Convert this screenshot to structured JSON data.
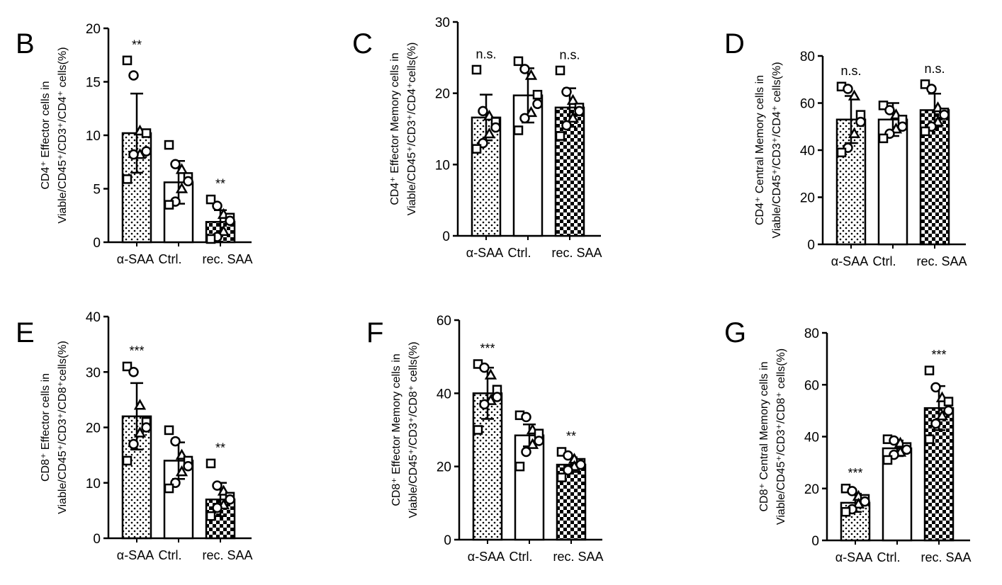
{
  "chart_data": [
    {
      "panel": "B",
      "type": "bar",
      "ylabel": [
        "CD4⁺ Effector cells in",
        "Viable/CD45⁺/CD3⁺/CD4⁺ cells(%)"
      ],
      "categories": [
        "α-SAA",
        "Ctrl.",
        "rec. SAA"
      ],
      "ylim": [
        0,
        20
      ],
      "yticks": [
        0,
        5,
        10,
        15,
        20
      ],
      "means": [
        10.2,
        5.6,
        1.9
      ],
      "sd": [
        3.7,
        2.0,
        1.1
      ],
      "significance": [
        "**",
        "",
        "**"
      ],
      "points": [
        [
          17,
          15.6,
          10.4,
          10.2,
          8.5,
          8.2,
          8.2,
          5.9
        ],
        [
          9.1,
          7.3,
          6.8,
          6.1,
          5.7,
          5.0,
          3.8,
          3.5
        ],
        [
          4.0,
          3.4,
          2.6,
          2.3,
          2.0,
          1.0,
          0.5,
          0.3
        ]
      ]
    },
    {
      "panel": "C",
      "type": "bar",
      "ylabel": [
        "CD4⁺ Effector Memory cells in",
        "Viable/CD45⁺/CD3⁺/CD4⁺cells(%)"
      ],
      "categories": [
        "α-SAA",
        "Ctrl.",
        "rec. SAA"
      ],
      "ylim": [
        0,
        30
      ],
      "yticks": [
        0,
        10,
        20,
        30
      ],
      "means": [
        16.6,
        19.7,
        18.0
      ],
      "sd": [
        3.2,
        3.8,
        2.7
      ],
      "significance": [
        "n.s.",
        "",
        "n.s."
      ],
      "points": [
        [
          23.3,
          17.5,
          16.8,
          16.0,
          15.2,
          14.3,
          13.0,
          12.2
        ],
        [
          24.5,
          23.4,
          22.5,
          19.8,
          18.5,
          17.3,
          16.5,
          14.8
        ],
        [
          23.2,
          20.2,
          19.0,
          18.0,
          17.5,
          16.5,
          15.5,
          14.0
        ]
      ]
    },
    {
      "panel": "D",
      "type": "bar",
      "ylabel": [
        "CD4⁺ Central Memory cells in",
        "Viable/CD45⁺/CD3⁺/CD4⁺ cells(%)"
      ],
      "categories": [
        "α-SAA",
        "Ctrl.",
        "rec. SAA"
      ],
      "ylim": [
        0,
        80
      ],
      "yticks": [
        0,
        20,
        40,
        60,
        80
      ],
      "means": [
        53,
        53,
        57
      ],
      "sd": [
        10,
        7,
        7
      ],
      "significance": [
        "n.s.",
        "",
        "n.s."
      ],
      "points": [
        [
          67,
          66,
          63,
          55,
          52,
          47,
          41,
          39
        ],
        [
          59,
          57,
          55,
          53,
          50,
          49,
          47,
          45
        ],
        [
          68,
          66,
          58,
          56,
          55,
          52,
          50,
          48
        ]
      ]
    },
    {
      "panel": "E",
      "type": "bar",
      "ylabel": [
        "CD8⁺ Effector cells in",
        "Viable/CD45⁺/CD3⁺/CD8⁺cells(%)"
      ],
      "categories": [
        "α-SAA",
        "Ctrl.",
        "rec. SAA"
      ],
      "ylim": [
        0,
        40
      ],
      "yticks": [
        0,
        10,
        20,
        30,
        40
      ],
      "means": [
        22,
        14,
        7
      ],
      "sd": [
        6,
        3.3,
        3
      ],
      "significance": [
        "***",
        "",
        "**"
      ],
      "points": [
        [
          31,
          30,
          24,
          21,
          20,
          19,
          17,
          14
        ],
        [
          19.5,
          17.5,
          15,
          14,
          13,
          12,
          10,
          9
        ],
        [
          13.5,
          9.5,
          8.5,
          7.5,
          7,
          6,
          5.5,
          4
        ]
      ]
    },
    {
      "panel": "F",
      "type": "bar",
      "ylabel": [
        "CD8⁺ Effector Memory cells in",
        "Viable/CD45⁺/CD3⁺/CD8⁺ cells(%)"
      ],
      "categories": [
        "α-SAA",
        "Ctrl.",
        "rec. SAA"
      ],
      "ylim": [
        0,
        60
      ],
      "yticks": [
        0,
        20,
        40,
        60
      ],
      "means": [
        40,
        28.5,
        20.5
      ],
      "sd": [
        7,
        3,
        2
      ],
      "significance": [
        "***",
        "",
        "**"
      ],
      "points": [
        [
          48,
          47,
          45,
          41,
          39,
          38,
          37,
          30
        ],
        [
          34,
          33.5,
          30,
          29,
          27,
          26,
          24,
          20
        ],
        [
          24,
          23,
          22,
          21,
          20.5,
          20,
          19,
          17
        ]
      ]
    },
    {
      "panel": "G",
      "type": "bar",
      "ylabel": [
        "CD8⁺ Central Memory cells in",
        "Viable/CD45⁺/CD3⁺/CD8⁺ cells(%)"
      ],
      "categories": [
        "α-SAA",
        "Ctrl.",
        "rec. SAA"
      ],
      "ylim": [
        0,
        80
      ],
      "yticks": [
        0,
        20,
        40,
        60,
        80
      ],
      "means": [
        14.5,
        35.5,
        51
      ],
      "sd": [
        3.5,
        3,
        8.5
      ],
      "significance": [
        "***",
        "",
        "***"
      ],
      "points": [
        [
          20,
          19,
          17,
          16,
          15,
          14,
          12,
          11
        ],
        [
          39,
          38.5,
          37.5,
          36,
          35,
          34,
          33,
          31
        ],
        [
          65.5,
          59,
          55,
          53.5,
          50,
          48,
          45,
          39
        ]
      ]
    }
  ],
  "bar_fills": [
    "dotted",
    "white",
    "checkerboard"
  ],
  "markers": [
    "square",
    "circle",
    "triangle",
    "square",
    "circle",
    "triangle",
    "circle",
    "square"
  ],
  "colors": {
    "ink": "#000000",
    "background": "#ffffff"
  }
}
